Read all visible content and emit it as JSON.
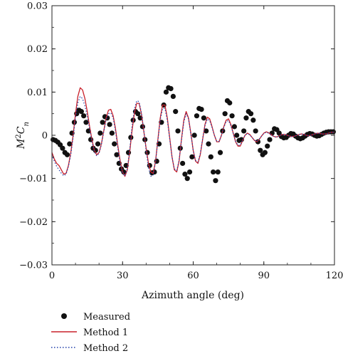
{
  "chart_data": {
    "type": "scatter",
    "xlabel": "Azimuth angle (deg)",
    "ylabel_main": "M",
    "ylabel_sup": "2",
    "ylabel_var": "C",
    "ylabel_sub": "n",
    "xlim": [
      0,
      120
    ],
    "ylim": [
      -0.03,
      0.03
    ],
    "xticks": [
      0,
      30,
      60,
      90,
      120
    ],
    "xtick_labels": [
      "0",
      "30",
      "60",
      "90",
      "120"
    ],
    "yticks": [
      0.03,
      0.02,
      0.01,
      0,
      -0.01,
      -0.02,
      -0.03
    ],
    "ytick_labels": [
      "0.03",
      "0.02",
      "0.01",
      "0",
      "−0.01",
      "−0.02",
      "−0.03"
    ],
    "grid": false,
    "legend_position": "below",
    "series": [
      {
        "name": "Measured",
        "kind": "markers",
        "color": "#111111",
        "x": [
          0.5,
          1.5,
          2.5,
          3.5,
          4.5,
          5.5,
          6.5,
          7.5,
          8.5,
          9.5,
          10.5,
          11.5,
          12.5,
          13.5,
          14.5,
          15.5,
          16.5,
          17.5,
          18.5,
          19.5,
          20.5,
          21.5,
          22.5,
          23.5,
          24.5,
          25.5,
          26.5,
          27.5,
          28.5,
          29.5,
          30.5,
          31.5,
          32.5,
          33.5,
          34.5,
          35.5,
          36.5,
          37.5,
          38.5,
          39.5,
          40.5,
          41.5,
          42.5,
          43.5,
          44.5,
          45.5,
          46.5,
          47.5,
          48.5,
          49.5,
          50.5,
          51.5,
          52.5,
          53.5,
          54.5,
          55.5,
          56.5,
          57.5,
          58.5,
          59.5,
          60.5,
          61.5,
          62.5,
          63.5,
          64.5,
          65.5,
          66.5,
          67.5,
          68.5,
          69.5,
          70.5,
          71.5,
          72.5,
          73.5,
          74.5,
          75.5,
          76.5,
          77.5,
          78.5,
          79.5,
          80.5,
          81.5,
          82.5,
          83.5,
          84.5,
          85.5,
          86.5,
          87.5,
          88.5,
          89.5,
          90.5,
          91.5,
          92.5,
          93.5,
          94.5,
          95.5,
          96.5,
          97.5,
          98.5,
          99.5,
          100.5,
          101.5,
          102.5,
          103.5,
          104.5,
          105.5,
          106.5,
          107.5,
          108.5,
          109.5,
          110.5,
          111.5,
          112.5,
          113.5,
          114.5,
          115.5,
          116.5,
          117.5,
          118.5,
          119.5
        ],
        "y": [
          -0.001,
          -0.0012,
          -0.0016,
          -0.0022,
          -0.003,
          -0.004,
          -0.0045,
          -0.002,
          0.0005,
          0.003,
          0.005,
          0.0058,
          0.0055,
          0.0045,
          0.003,
          0.001,
          -0.001,
          -0.003,
          -0.0035,
          -0.002,
          0.0005,
          0.003,
          0.0043,
          0.004,
          0.0025,
          0.0005,
          -0.002,
          -0.0045,
          -0.0065,
          -0.0078,
          -0.0085,
          -0.007,
          -0.004,
          -0.0005,
          0.0035,
          0.0055,
          0.005,
          0.004,
          0.002,
          -0.001,
          -0.004,
          -0.007,
          -0.0087,
          -0.0085,
          -0.006,
          -0.002,
          0.003,
          0.007,
          0.01,
          0.011,
          0.0108,
          0.009,
          0.0055,
          0.001,
          -0.003,
          -0.0065,
          -0.009,
          -0.01,
          -0.0085,
          -0.005,
          0.0,
          0.0045,
          0.0062,
          0.006,
          0.004,
          0.001,
          -0.002,
          -0.005,
          -0.0085,
          -0.0105,
          -0.0085,
          -0.004,
          0.001,
          0.005,
          0.008,
          0.0075,
          0.0045,
          0.002,
          0.0,
          -0.0012,
          -0.001,
          0.001,
          0.004,
          0.0055,
          0.005,
          0.0035,
          0.001,
          -0.0015,
          -0.0035,
          -0.0045,
          -0.004,
          -0.0025,
          -0.001,
          0.0005,
          0.0015,
          0.0013,
          0.0005,
          -0.0003,
          -0.0006,
          -0.0005,
          0.0,
          0.0004,
          0.0003,
          -0.0002,
          -0.0006,
          -0.0008,
          -0.0006,
          -0.0002,
          0.0002,
          0.0004,
          0.0003,
          0.0,
          -0.0002,
          -0.0001,
          0.0002,
          0.0005,
          0.0007,
          0.0008,
          0.0008,
          0.0008
        ]
      },
      {
        "name": "Method 1",
        "kind": "line",
        "color": "#c8202a",
        "x": [
          0,
          1,
          2,
          3,
          4,
          5,
          6,
          7,
          8,
          9,
          10,
          11,
          12,
          13,
          14,
          15,
          16,
          17,
          18,
          19,
          20,
          21,
          22,
          23,
          24,
          25,
          26,
          27,
          28,
          29,
          30,
          31,
          32,
          33,
          34,
          35,
          36,
          37,
          38,
          39,
          40,
          41,
          42,
          43,
          44,
          45,
          46,
          47,
          48,
          49,
          50,
          51,
          52,
          53,
          54,
          55,
          56,
          57,
          58,
          59,
          60,
          61,
          62,
          63,
          64,
          65,
          66,
          67,
          68,
          69,
          70,
          71,
          72,
          73,
          74,
          75,
          76,
          77,
          78,
          79,
          80,
          81,
          82,
          83,
          84,
          85,
          86,
          87,
          88,
          89,
          90,
          91,
          92,
          93,
          94,
          95,
          96,
          97,
          98,
          99,
          100,
          101,
          102,
          103,
          104,
          105,
          106,
          107,
          108,
          109,
          110,
          111,
          112,
          113,
          114,
          115,
          116,
          117,
          118,
          119,
          120
        ],
        "y": [
          -0.004,
          -0.0055,
          -0.0065,
          -0.007,
          -0.008,
          -0.009,
          -0.0088,
          -0.007,
          -0.004,
          0.0,
          0.005,
          0.009,
          0.011,
          0.0105,
          0.0085,
          0.0055,
          0.002,
          -0.001,
          -0.0035,
          -0.0045,
          -0.004,
          -0.002,
          0.001,
          0.004,
          0.0058,
          0.006,
          0.0045,
          0.0015,
          -0.0025,
          -0.006,
          -0.0085,
          -0.0095,
          -0.008,
          -0.004,
          0.001,
          0.005,
          0.0074,
          0.0074,
          0.005,
          0.001,
          -0.003,
          -0.0065,
          -0.0085,
          -0.0088,
          -0.006,
          -0.001,
          0.004,
          0.007,
          0.007,
          0.004,
          -0.0005,
          -0.005,
          -0.008,
          -0.0085,
          -0.006,
          -0.001,
          0.0035,
          0.0055,
          0.004,
          0.0005,
          -0.0035,
          -0.006,
          -0.0065,
          -0.0045,
          -0.001,
          0.0025,
          0.0042,
          0.0038,
          0.002,
          0.0,
          -0.0015,
          -0.0015,
          0.0,
          0.002,
          0.0035,
          0.0038,
          0.0025,
          0.0005,
          -0.0015,
          -0.0025,
          -0.0025,
          -0.0012,
          0.0,
          0.0005,
          0.0002,
          -0.0005,
          -0.0012,
          -0.0015,
          -0.001,
          -0.0002,
          0.0005,
          0.0008,
          0.0006,
          0.0002,
          -0.0002,
          -0.0004,
          -0.0003,
          0.0,
          0.0002,
          0.0002,
          0.0,
          -0.0002,
          -0.0003,
          -0.0002,
          0.0,
          0.0002,
          0.0003,
          0.0002,
          0.0,
          -0.0001,
          0.0,
          0.0002,
          0.0004,
          0.0005,
          0.0004,
          0.0003,
          0.0003,
          0.0004,
          0.0006,
          0.0007,
          0.0007
        ]
      },
      {
        "name": "Method 2",
        "kind": "dotted-line",
        "color": "#1f3ea8",
        "x": [
          0,
          1,
          2,
          3,
          4,
          5,
          6,
          7,
          8,
          9,
          10,
          11,
          12,
          13,
          14,
          15,
          16,
          17,
          18,
          19,
          20,
          21,
          22,
          23,
          24,
          25,
          26,
          27,
          28,
          29,
          30,
          31,
          32,
          33,
          34,
          35,
          36,
          37,
          38,
          39,
          40,
          41,
          42,
          43,
          44,
          45,
          46,
          47,
          48,
          49,
          50,
          51,
          52,
          53,
          54,
          55,
          56,
          57,
          58,
          59,
          60,
          61,
          62,
          63,
          64,
          65,
          66,
          67,
          68,
          69,
          70,
          71,
          72,
          73,
          74,
          75,
          76,
          77,
          78,
          79,
          80,
          81,
          82,
          83,
          84,
          85,
          86,
          87,
          88,
          89,
          90,
          91,
          92,
          93,
          94,
          95,
          96,
          97,
          98,
          99,
          100,
          101,
          102,
          103,
          104,
          105,
          106,
          107,
          108,
          109,
          110,
          111,
          112,
          113,
          114,
          115,
          116,
          117,
          118,
          119,
          120
        ],
        "y": [
          -0.0045,
          -0.006,
          -0.0072,
          -0.008,
          -0.0088,
          -0.0094,
          -0.009,
          -0.0072,
          -0.0045,
          -0.0005,
          0.004,
          0.0075,
          0.009,
          0.0085,
          0.0068,
          0.0045,
          0.0015,
          -0.0015,
          -0.0038,
          -0.0048,
          -0.0042,
          -0.0022,
          0.0008,
          0.0036,
          0.005,
          0.0052,
          0.004,
          0.001,
          -0.003,
          -0.0065,
          -0.0088,
          -0.0094,
          -0.0078,
          -0.0035,
          0.002,
          0.006,
          0.008,
          0.0078,
          0.0052,
          0.0012,
          -0.0035,
          -0.0075,
          -0.0095,
          -0.0092,
          -0.0062,
          -0.0012,
          0.0035,
          0.0062,
          0.0062,
          0.0035,
          -0.0008,
          -0.005,
          -0.0078,
          -0.0082,
          -0.0058,
          -0.0012,
          0.003,
          0.005,
          0.0038,
          0.0002,
          -0.0035,
          -0.0058,
          -0.0062,
          -0.0042,
          -0.0008,
          0.0022,
          0.0038,
          0.0034,
          0.0018,
          0.0,
          -0.0014,
          -0.0014,
          0.0,
          0.0018,
          0.0032,
          0.0034,
          0.0022,
          0.0004,
          -0.0014,
          -0.0023,
          -0.0023,
          -0.0011,
          0.0,
          0.0004,
          0.0001,
          -0.0005,
          -0.0011,
          -0.0014,
          -0.0009,
          -0.0002,
          0.0004,
          0.0007,
          0.0005,
          0.0001,
          -0.0002,
          -0.0004,
          -0.0003,
          0.0,
          0.0002,
          0.0002,
          0.0,
          -0.0002,
          -0.0003,
          -0.0002,
          0.0,
          0.0002,
          0.0003,
          0.0002,
          0.0,
          -0.0001,
          0.0,
          0.0002,
          0.0004,
          0.0005,
          0.0004,
          0.0003,
          0.0003,
          0.0004,
          0.0006,
          0.0007,
          0.0007
        ]
      }
    ]
  }
}
